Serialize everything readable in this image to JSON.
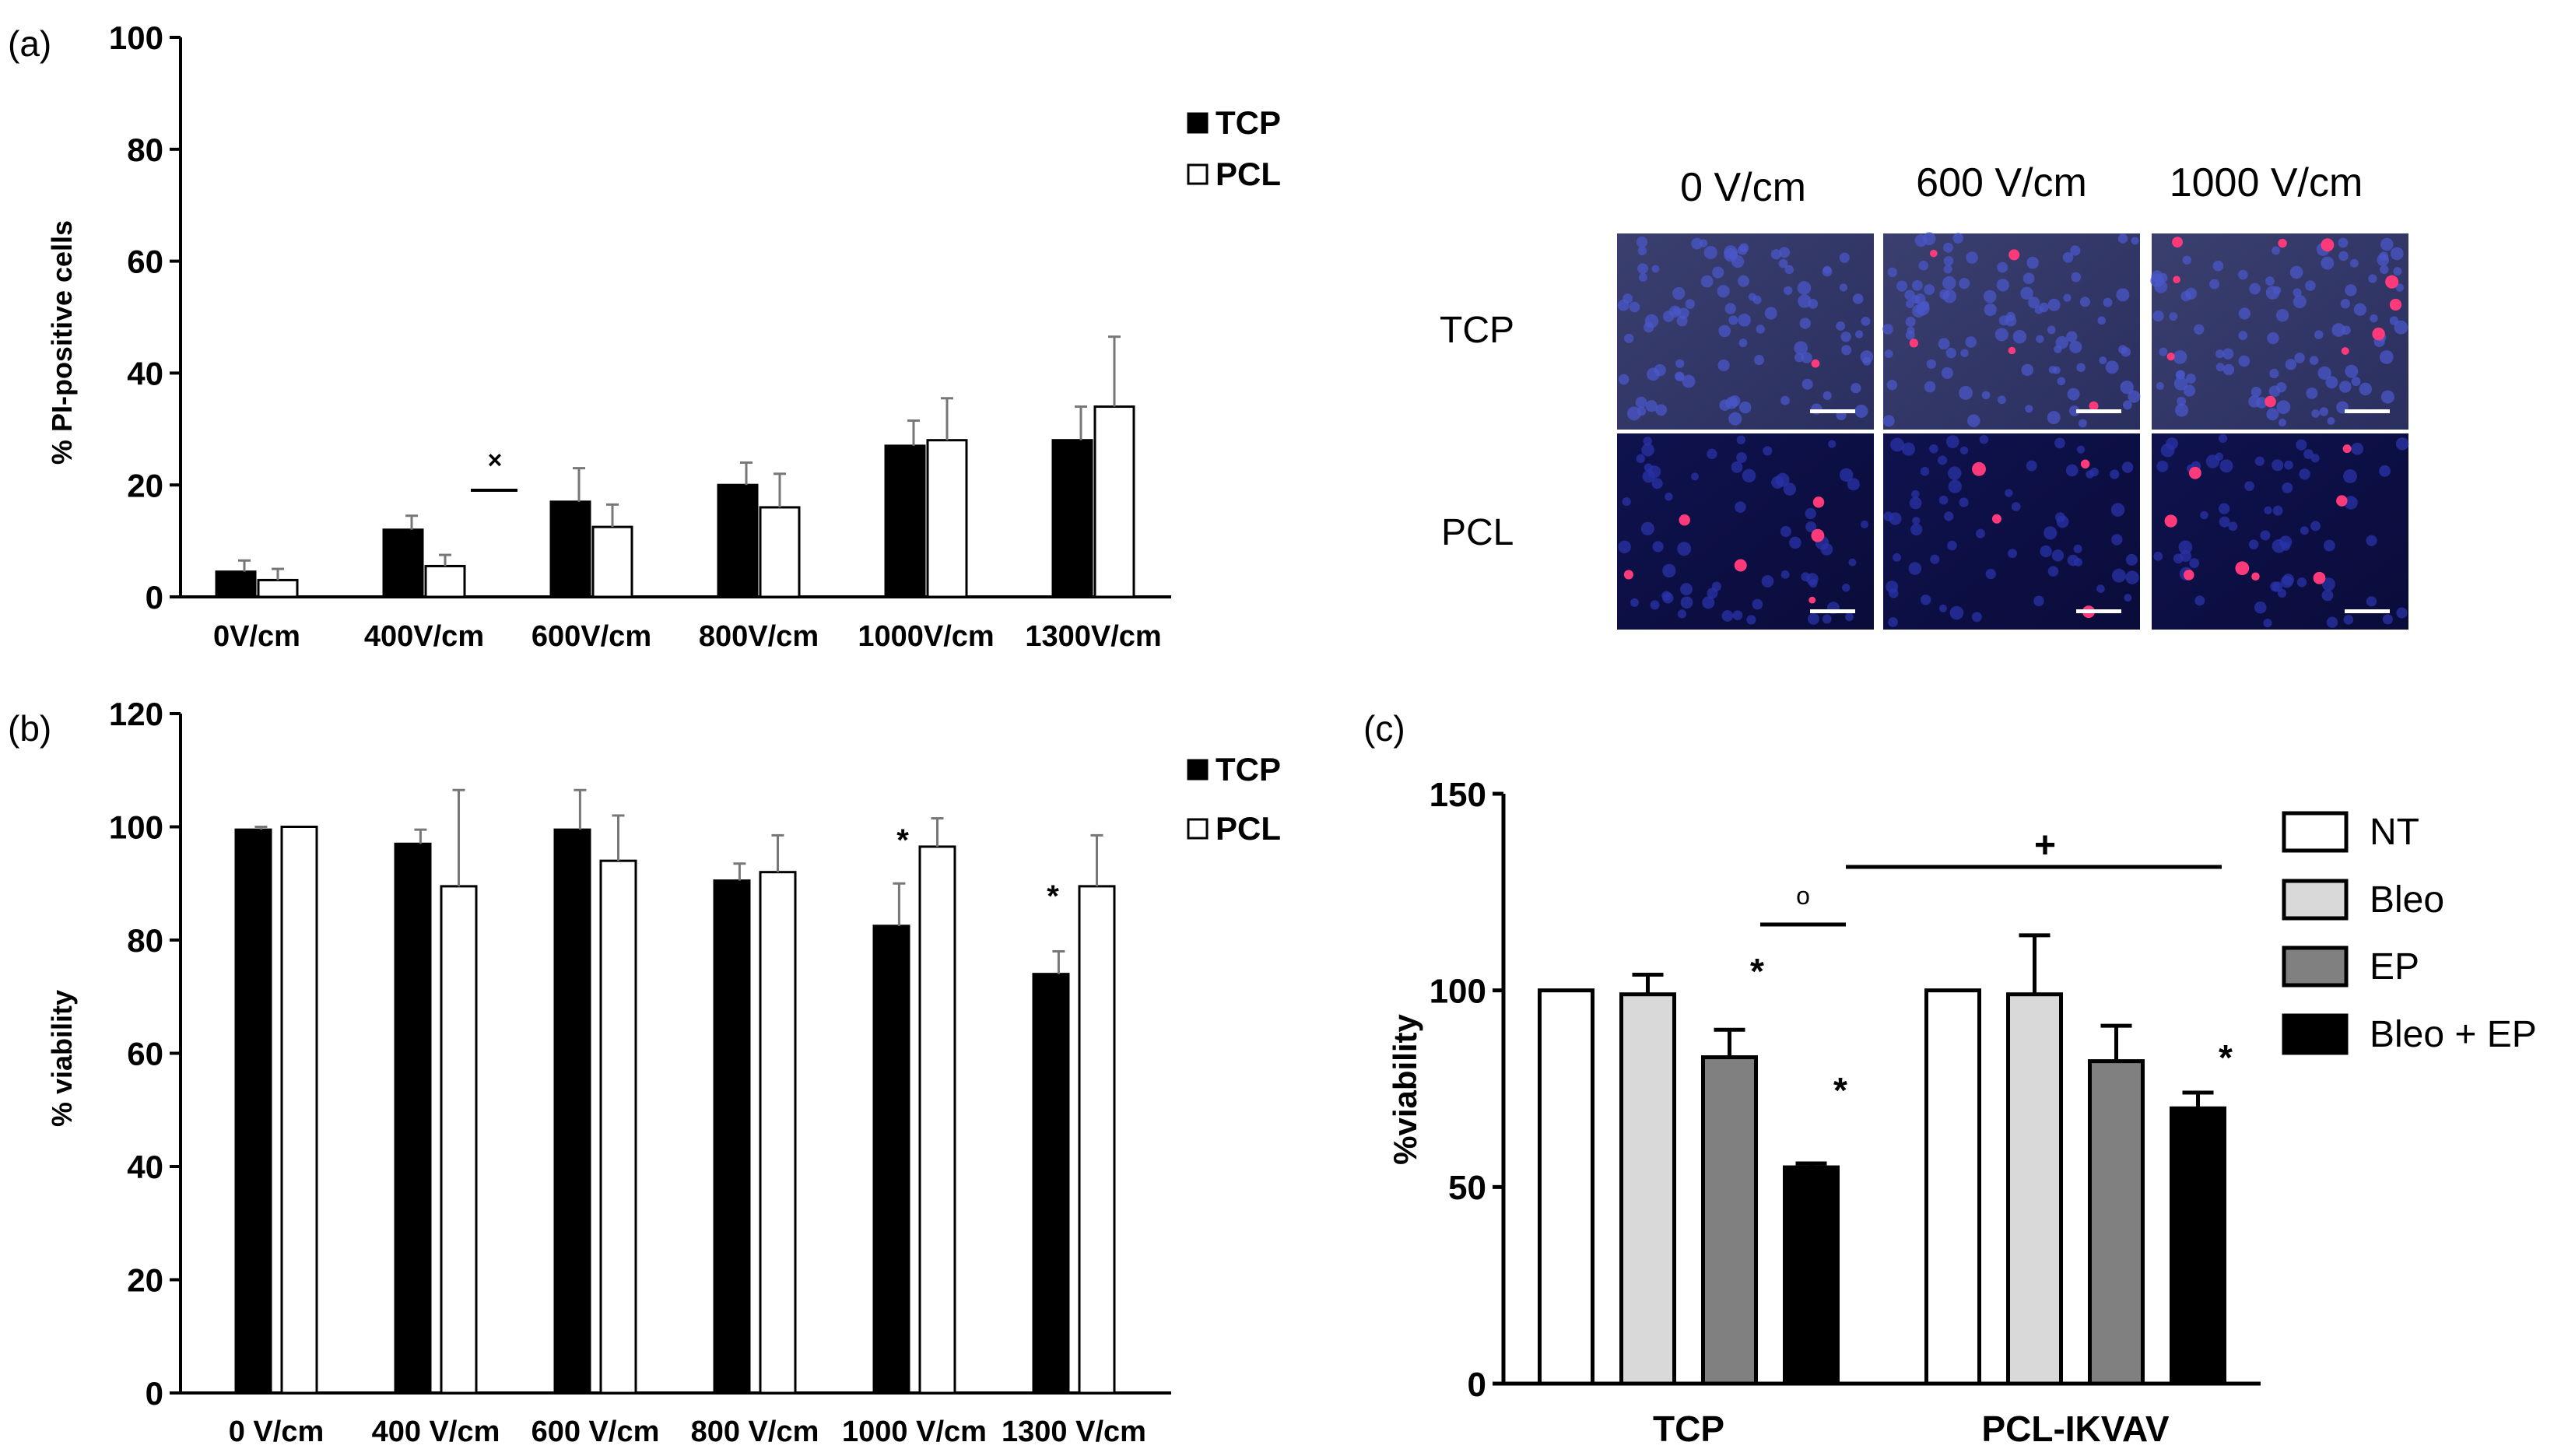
{
  "panels": {
    "a": {
      "panel_label": "(a)",
      "ylabel": "% PI-positive cells",
      "yticks": [
        "0",
        "20",
        "40",
        "60",
        "80",
        "100"
      ],
      "legend": [
        "TCP",
        "PCL"
      ],
      "annotation": "×"
    },
    "b": {
      "panel_label": "(b)",
      "ylabel": "% viability",
      "yticks": [
        "0",
        "20",
        "40",
        "60",
        "80",
        "100",
        "120"
      ],
      "legend": [
        "TCP",
        "PCL"
      ],
      "annotations": [
        "*",
        "*"
      ]
    },
    "c": {
      "panel_label": "(c)",
      "ylabel": "%viability",
      "yticks": [
        "0",
        "50",
        "100",
        "150"
      ],
      "legend": [
        "NT",
        "Bleo",
        "EP",
        "Bleo + EP"
      ],
      "annotations": [
        "*",
        "*",
        "*",
        "o",
        "+"
      ]
    },
    "micrographs": {
      "columns": [
        "0 V/cm",
        "600 V/cm",
        "1000 V/cm"
      ],
      "rows": [
        "TCP",
        "PCL"
      ]
    }
  },
  "chart_data": [
    {
      "id": "a",
      "type": "bar",
      "title": "",
      "xlabel": "",
      "ylabel": "% PI-positive cells",
      "ylim": [
        0,
        100
      ],
      "categories": [
        "0V/cm",
        "400V/cm",
        "600V/cm",
        "800V/cm",
        "1000V/cm",
        "1300V/cm"
      ],
      "series": [
        {
          "name": "TCP",
          "color": "#000000",
          "values": [
            4.5,
            12,
            17,
            20,
            27,
            28
          ],
          "errors": [
            2,
            2.5,
            6,
            4,
            4.5,
            6
          ]
        },
        {
          "name": "PCL",
          "color": "#ffffff",
          "values": [
            3,
            5.5,
            12.5,
            16,
            28,
            34
          ],
          "errors": [
            2,
            2,
            4,
            6,
            7.5,
            12.5
          ]
        }
      ]
    },
    {
      "id": "b",
      "type": "bar",
      "title": "",
      "xlabel": "",
      "ylabel": "% viability",
      "ylim": [
        0,
        120
      ],
      "categories": [
        "0 V/cm",
        "400 V/cm",
        "600 V/cm",
        "800 V/cm",
        "1000 V/cm",
        "1300 V/cm"
      ],
      "series": [
        {
          "name": "TCP",
          "color": "#000000",
          "values": [
            99.5,
            97,
            99.5,
            90.5,
            82.5,
            74
          ],
          "errors": [
            0.5,
            2.5,
            7,
            3,
            7.5,
            4
          ]
        },
        {
          "name": "PCL",
          "color": "#ffffff",
          "values": [
            100,
            89.5,
            94,
            92,
            96.5,
            89.5
          ],
          "errors": [
            0,
            17,
            8,
            6.5,
            5,
            9
          ]
        }
      ]
    },
    {
      "id": "c",
      "type": "bar",
      "title": "",
      "xlabel": "",
      "ylabel": "%viability",
      "ylim": [
        0,
        150
      ],
      "categories": [
        "TCP",
        "PCL-IKVAV"
      ],
      "series": [
        {
          "name": "NT",
          "color": "#ffffff",
          "values": [
            100,
            100
          ],
          "errors": [
            0,
            0
          ]
        },
        {
          "name": "Bleo",
          "color": "#d9d9d9",
          "values": [
            99,
            99
          ],
          "errors": [
            5,
            15
          ]
        },
        {
          "name": "EP",
          "color": "#808080",
          "values": [
            83,
            82
          ],
          "errors": [
            7,
            9
          ]
        },
        {
          "name": "Bleo + EP",
          "color": "#000000",
          "values": [
            55,
            70
          ],
          "errors": [
            1,
            4
          ]
        }
      ]
    }
  ]
}
